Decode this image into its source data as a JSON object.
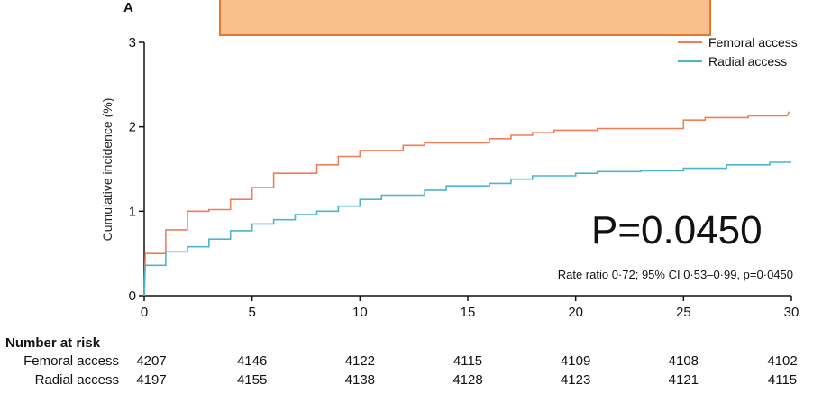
{
  "panel_label": "A",
  "annotation_big": "P=0.0450",
  "annotation_small": "Rate ratio 0·72; 95% CI 0·53–0·99, p=0·0450",
  "number_at_risk": {
    "title": "Number at risk",
    "rows": [
      {
        "label": "Femoral access",
        "values": [
          "4207",
          "4146",
          "4122",
          "4115",
          "4109",
          "4108",
          "4102"
        ]
      },
      {
        "label": "Radial access",
        "values": [
          "4197",
          "4155",
          "4138",
          "4128",
          "4123",
          "4121",
          "4115"
        ]
      }
    ],
    "times": [
      0,
      5,
      10,
      15,
      20,
      25,
      30
    ]
  },
  "chart_data": {
    "type": "line",
    "ylabel": "Cumulative incidence (%)",
    "xlabel": "",
    "xlim": [
      0,
      30
    ],
    "ylim": [
      0,
      3
    ],
    "xticks": [
      0,
      5,
      10,
      15,
      20,
      25,
      30
    ],
    "yticks": [
      0,
      1,
      2,
      3
    ],
    "legend_position": "top-right",
    "series": [
      {
        "name": "Femoral access",
        "color": "#f07e5a",
        "step": true,
        "points": [
          [
            0,
            0
          ],
          [
            0.05,
            0.5
          ],
          [
            1,
            0.5
          ],
          [
            1,
            0.78
          ],
          [
            2,
            0.78
          ],
          [
            2,
            1.0
          ],
          [
            3,
            1.0
          ],
          [
            3,
            1.02
          ],
          [
            4,
            1.02
          ],
          [
            4,
            1.14
          ],
          [
            5,
            1.14
          ],
          [
            5,
            1.28
          ],
          [
            6,
            1.28
          ],
          [
            6,
            1.45
          ],
          [
            8,
            1.45
          ],
          [
            8,
            1.55
          ],
          [
            9,
            1.55
          ],
          [
            9,
            1.65
          ],
          [
            10,
            1.65
          ],
          [
            10,
            1.72
          ],
          [
            12,
            1.72
          ],
          [
            12,
            1.78
          ],
          [
            13,
            1.78
          ],
          [
            13,
            1.81
          ],
          [
            16,
            1.81
          ],
          [
            16,
            1.86
          ],
          [
            17,
            1.86
          ],
          [
            17,
            1.9
          ],
          [
            18,
            1.9
          ],
          [
            18,
            1.93
          ],
          [
            19,
            1.93
          ],
          [
            19,
            1.96
          ],
          [
            21,
            1.96
          ],
          [
            21,
            1.98
          ],
          [
            25,
            1.98
          ],
          [
            25,
            2.08
          ],
          [
            26,
            2.08
          ],
          [
            26,
            2.11
          ],
          [
            28,
            2.11
          ],
          [
            28,
            2.13
          ],
          [
            29,
            2.13
          ],
          [
            29.8,
            2.13
          ],
          [
            29.9,
            2.18
          ]
        ]
      },
      {
        "name": "Radial access",
        "color": "#4fb3cc",
        "step": true,
        "points": [
          [
            0,
            0
          ],
          [
            0.05,
            0.36
          ],
          [
            1,
            0.36
          ],
          [
            1,
            0.52
          ],
          [
            2,
            0.52
          ],
          [
            2,
            0.58
          ],
          [
            3,
            0.58
          ],
          [
            3,
            0.67
          ],
          [
            4,
            0.67
          ],
          [
            4,
            0.77
          ],
          [
            5,
            0.77
          ],
          [
            5,
            0.85
          ],
          [
            6,
            0.85
          ],
          [
            6,
            0.9
          ],
          [
            7,
            0.9
          ],
          [
            7,
            0.96
          ],
          [
            8,
            0.96
          ],
          [
            8,
            1.0
          ],
          [
            9,
            1.0
          ],
          [
            9,
            1.06
          ],
          [
            10,
            1.06
          ],
          [
            10,
            1.14
          ],
          [
            11,
            1.14
          ],
          [
            11,
            1.19
          ],
          [
            13,
            1.19
          ],
          [
            13,
            1.25
          ],
          [
            14,
            1.25
          ],
          [
            14,
            1.3
          ],
          [
            16,
            1.3
          ],
          [
            16,
            1.33
          ],
          [
            17,
            1.33
          ],
          [
            17,
            1.38
          ],
          [
            18,
            1.38
          ],
          [
            18,
            1.42
          ],
          [
            20,
            1.42
          ],
          [
            20,
            1.45
          ],
          [
            21,
            1.45
          ],
          [
            21,
            1.47
          ],
          [
            23,
            1.47
          ],
          [
            23,
            1.48
          ],
          [
            25,
            1.48
          ],
          [
            25,
            1.51
          ],
          [
            27,
            1.51
          ],
          [
            27,
            1.55
          ],
          [
            29,
            1.55
          ],
          [
            29,
            1.58
          ],
          [
            30,
            1.58
          ]
        ]
      }
    ]
  }
}
